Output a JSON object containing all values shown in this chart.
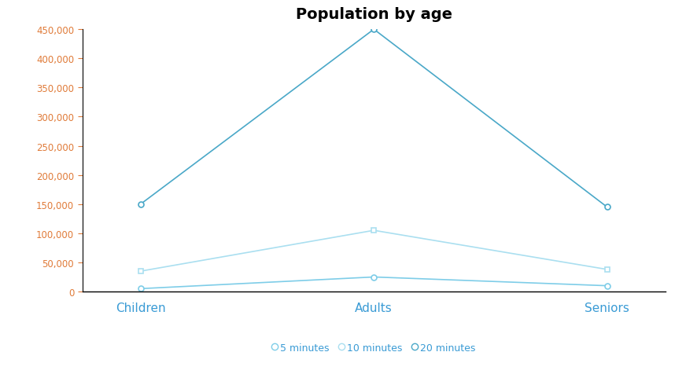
{
  "categories": [
    "Children",
    "Adults",
    "Seniors"
  ],
  "series": [
    {
      "label": "5 minutes",
      "values": [
        5000,
        25000,
        10000
      ],
      "color": "#7ecde8",
      "marker": "o"
    },
    {
      "label": "10 minutes",
      "values": [
        35000,
        105000,
        38000
      ],
      "color": "#aadff0",
      "marker": "s"
    },
    {
      "label": "20 minutes",
      "values": [
        150000,
        450000,
        145000
      ],
      "color": "#4aa8c8",
      "marker": "o"
    }
  ],
  "title": "Population by age",
  "title_fontsize": 14,
  "title_fontweight": "bold",
  "ylim": [
    0,
    450000
  ],
  "yticks": [
    0,
    50000,
    100000,
    150000,
    200000,
    250000,
    300000,
    350000,
    400000,
    450000
  ],
  "xticklabel_color": "#3a9bd5",
  "ytick_label_color": "#e07b39",
  "background_color": "#ffffff",
  "legend_ncol": 3,
  "linewidth": 1.2,
  "markersize": 5,
  "legend_label_color": "#3a9bd5"
}
